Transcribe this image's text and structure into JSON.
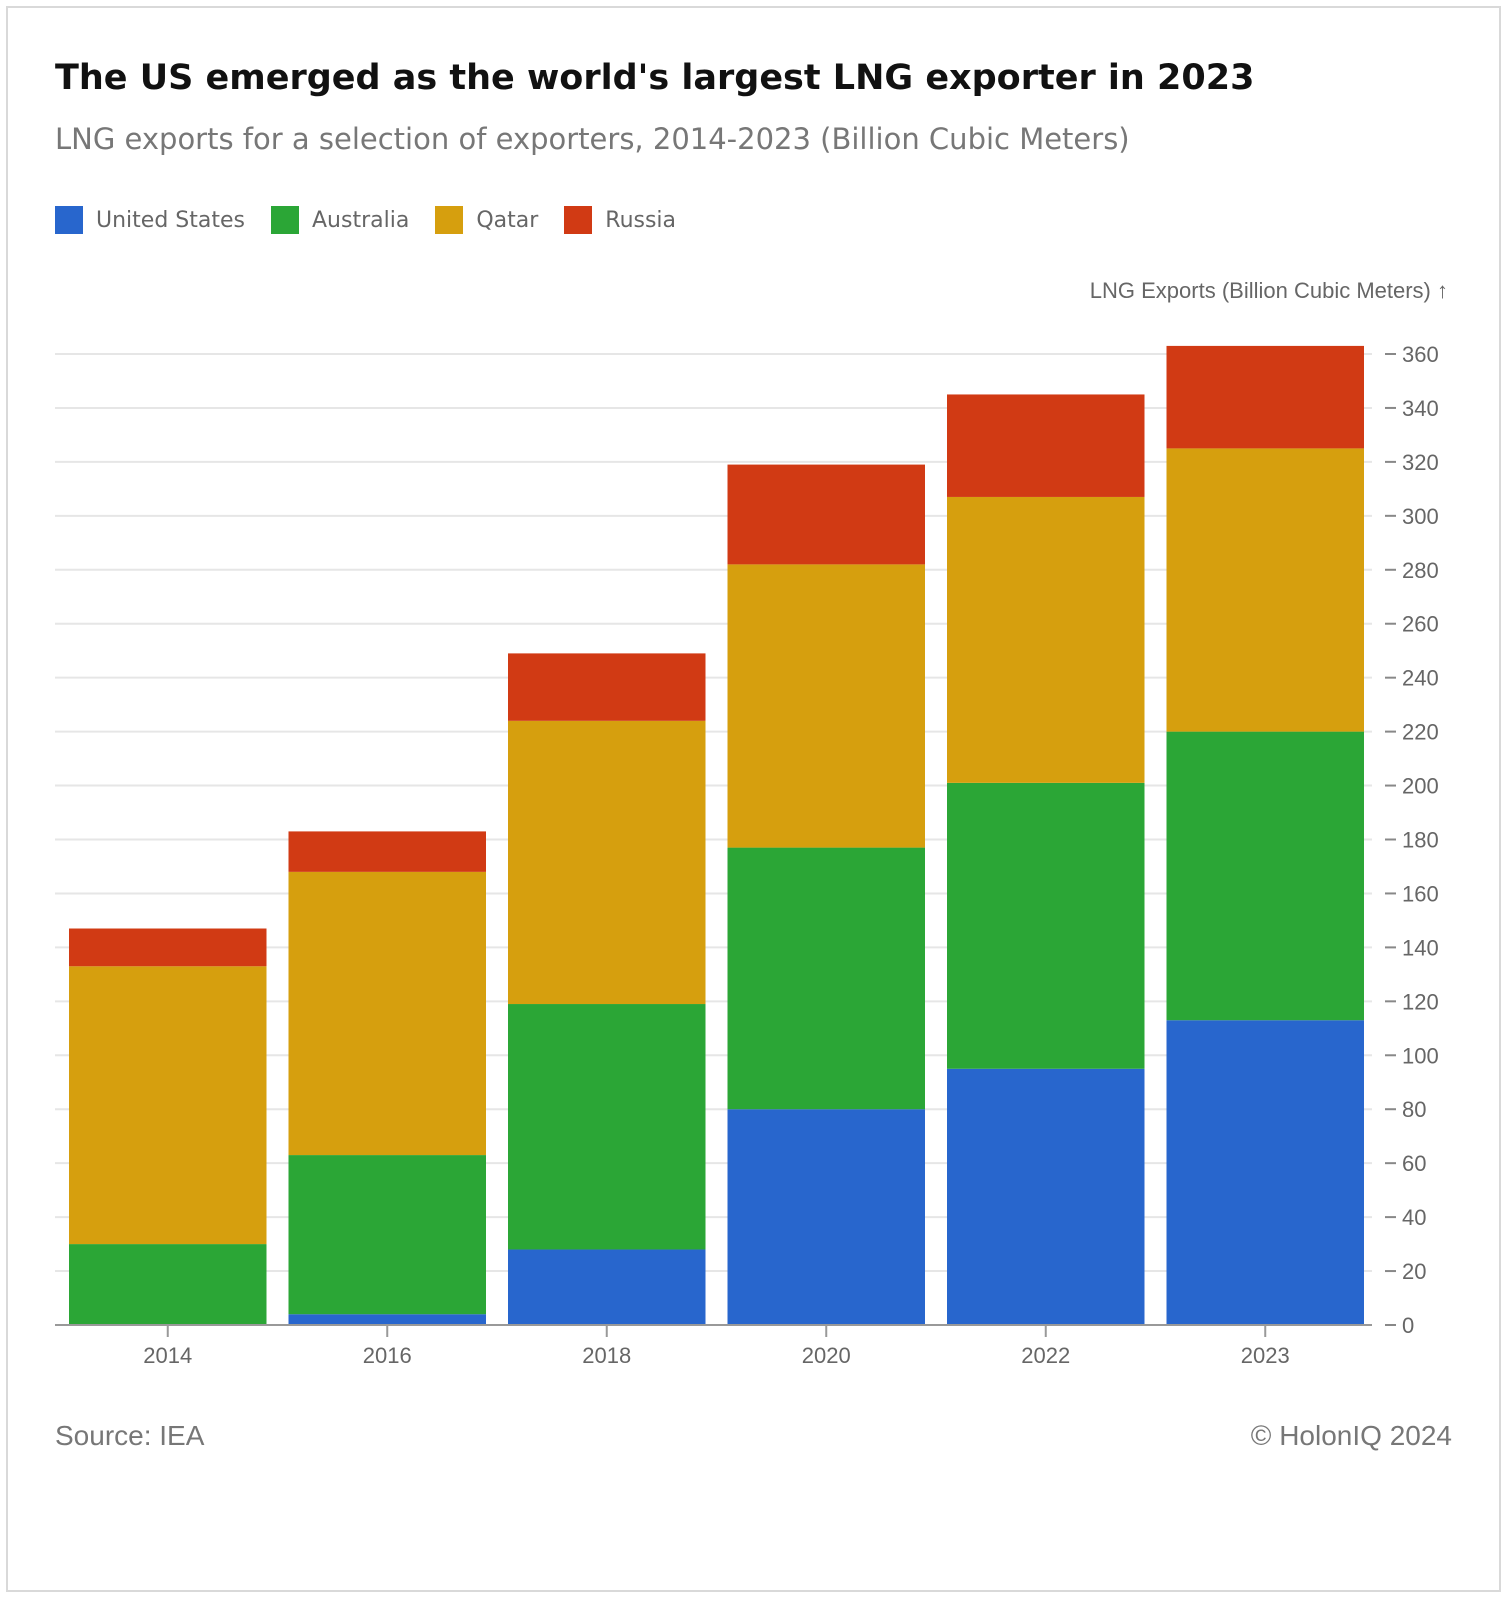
{
  "title": "The US emerged as the world's largest LNG exporter in 2023",
  "subtitle": "LNG exports for a selection of exporters, 2014-2023 (Billion Cubic Meters)",
  "source": "Source: IEA",
  "copyright": "© HolonIQ 2024",
  "chart_data": {
    "type": "bar",
    "stacked": true,
    "categories": [
      "2014",
      "2016",
      "2018",
      "2020",
      "2022",
      "2023"
    ],
    "series": [
      {
        "name": "United States",
        "color": "#2866cd",
        "values": [
          0,
          4,
          28,
          80,
          95,
          113
        ]
      },
      {
        "name": "Australia",
        "color": "#2ba636",
        "values": [
          30,
          59,
          91,
          97,
          106,
          107
        ]
      },
      {
        "name": "Qatar",
        "color": "#d69f0e",
        "values": [
          103,
          105,
          105,
          105,
          106,
          105
        ]
      },
      {
        "name": "Russia",
        "color": "#d13a14",
        "values": [
          14,
          15,
          25,
          37,
          38,
          38
        ]
      }
    ],
    "ylabel": "LNG Exports (Billion Cubic Meters) ↑",
    "ylim": [
      0,
      360
    ],
    "yticks": [
      0,
      20,
      40,
      60,
      80,
      100,
      120,
      140,
      160,
      180,
      200,
      220,
      240,
      260,
      280,
      300,
      320,
      340,
      360
    ],
    "grid": true,
    "y_axis_position": "right",
    "legend_position": "top-left"
  }
}
